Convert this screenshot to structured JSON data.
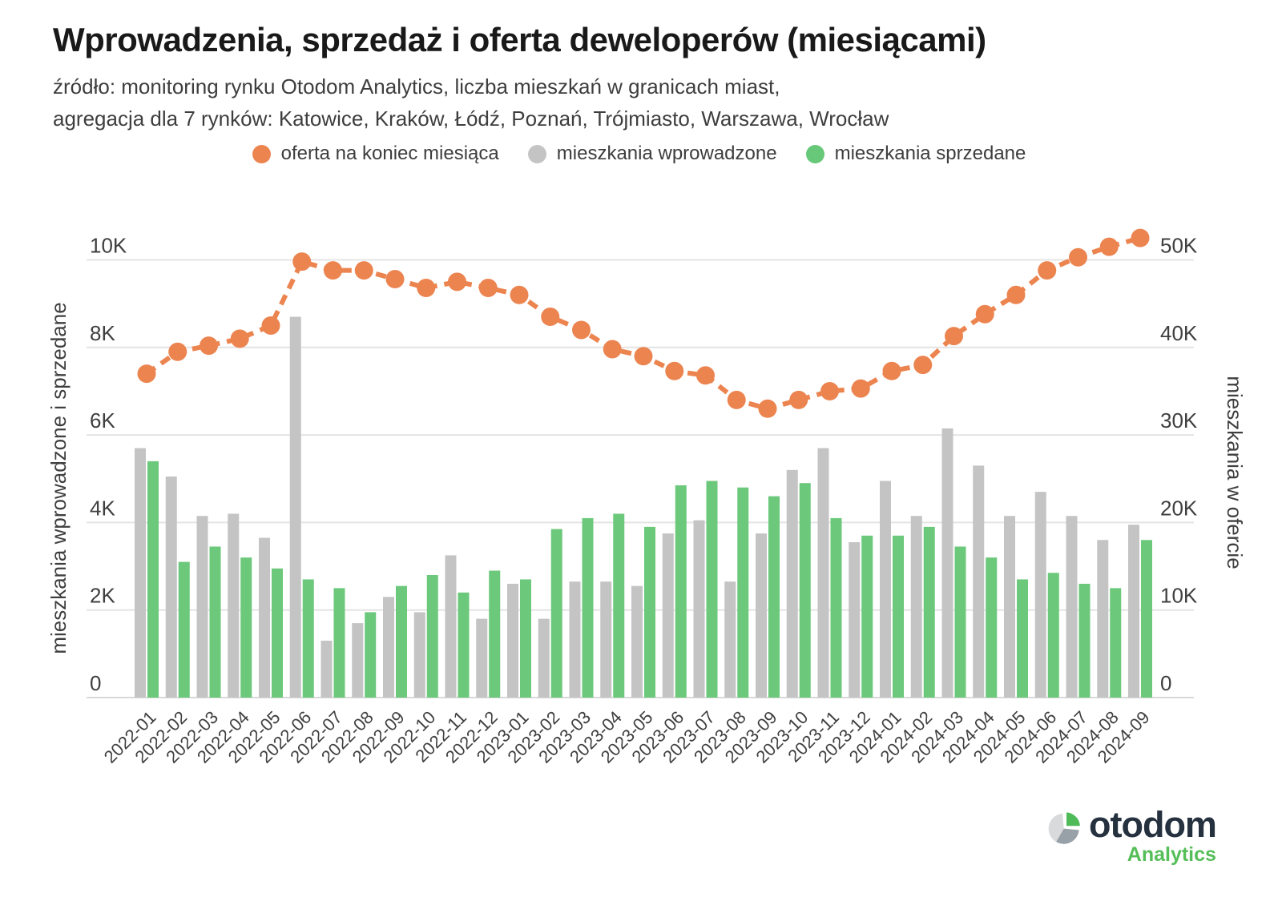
{
  "title": "Wprowadzenia, sprzedaż i oferta deweloperów (miesiącami)",
  "subtitle_line1": "źródło: monitoring rynku Otodom Analytics, liczba mieszkań w granicach miast,",
  "subtitle_line2": "agregacja dla 7 rynków: Katowice, Kraków, Łódź, Poznań, Trójmiasto, Warszawa, Wrocław",
  "legend": [
    {
      "label": "oferta na koniec miesiąca",
      "color": "#EC8450"
    },
    {
      "label": "mieszkania wprowadzone",
      "color": "#C4C4C4"
    },
    {
      "label": "mieszkania sprzedane",
      "color": "#66C878"
    }
  ],
  "colors": {
    "line_offer": "#EC8450",
    "bar_introduced": "#C4C4C4",
    "bar_sold": "#6CC87B",
    "gridline": "#E4E4E4",
    "axis_baseline": "#D9D9D9",
    "axis_text": "#3F3F3F"
  },
  "chart_data": {
    "type": "bar+line",
    "title": "Wprowadzenia, sprzedaż i oferta deweloperów (miesiącami)",
    "grid": true,
    "legend_position": "top",
    "categories": [
      "2022-01",
      "2022-02",
      "2022-03",
      "2022-04",
      "2022-05",
      "2022-06",
      "2022-07",
      "2022-08",
      "2022-09",
      "2022-10",
      "2022-11",
      "2022-12",
      "2023-01",
      "2023-02",
      "2023-03",
      "2023-04",
      "2023-05",
      "2023-06",
      "2023-07",
      "2023-08",
      "2023-09",
      "2023-10",
      "2023-11",
      "2023-12",
      "2024-01",
      "2024-02",
      "2024-03",
      "2024-04",
      "2024-05",
      "2024-06",
      "2024-07",
      "2024-08",
      "2024-09"
    ],
    "series": [
      {
        "name": "mieszkania wprowadzone",
        "type": "bar",
        "axis": "left",
        "color": "#C4C4C4",
        "values": [
          5700,
          5050,
          4150,
          4200,
          3650,
          8700,
          1300,
          1700,
          2300,
          1950,
          3250,
          1800,
          2600,
          1800,
          2650,
          2650,
          2550,
          3750,
          4050,
          2650,
          3750,
          5200,
          5700,
          3550,
          4950,
          4150,
          6150,
          5300,
          4150,
          4700,
          4150,
          3600,
          3950
        ]
      },
      {
        "name": "mieszkania sprzedane",
        "type": "bar",
        "axis": "left",
        "color": "#6CC87B",
        "values": [
          5400,
          3100,
          3450,
          3200,
          2950,
          2700,
          2500,
          1950,
          2550,
          2800,
          2400,
          2900,
          2700,
          3850,
          4100,
          4200,
          3900,
          4850,
          4950,
          4800,
          4600,
          4900,
          4100,
          3700,
          3700,
          3900,
          3450,
          3200,
          2700,
          2850,
          2600,
          2500,
          3600
        ]
      },
      {
        "name": "oferta na koniec miesiąca",
        "type": "line",
        "axis": "right",
        "color": "#EC8450",
        "values": [
          37000,
          39500,
          40200,
          41000,
          42500,
          49800,
          48800,
          48800,
          47800,
          46800,
          47500,
          46800,
          46000,
          43500,
          42000,
          39800,
          39000,
          37300,
          36800,
          34000,
          33000,
          34000,
          35000,
          35300,
          37300,
          38000,
          41300,
          43800,
          46000,
          48800,
          50300,
          51500,
          52500
        ]
      }
    ],
    "left_axis": {
      "label": "mieszkania wprowadzone i sprzedane",
      "min": 0,
      "max": 10000,
      "ticks": [
        "0",
        "2K",
        "4K",
        "6K",
        "8K",
        "10K"
      ]
    },
    "right_axis": {
      "label": "mieszkania w ofercie",
      "min": 0,
      "max": 50000,
      "ticks": [
        "0",
        "10K",
        "20K",
        "30K",
        "40K",
        "50K"
      ]
    }
  },
  "logo": {
    "brand": "otodom",
    "sub": "Analytics",
    "brand_color": "#26313F",
    "sub_color": "#55BE58",
    "pie_green": "#4FBA58",
    "pie_light": "#D8DADC",
    "pie_dark": "#98A0A8"
  }
}
